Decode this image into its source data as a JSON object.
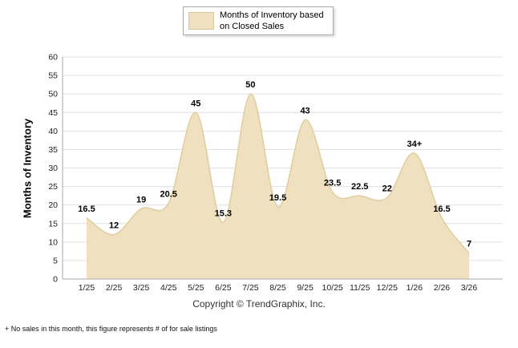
{
  "legend": {
    "label_line1": "Months of Inventory based",
    "label_line2": "on Closed Sales"
  },
  "ylabel": "Months of Inventory",
  "copyright": "Copyright © TrendGraphix, Inc.",
  "footnote": "+ No sales in this month, this figure represents # of for sale listings",
  "colors": {
    "area_fill": "#EFE1C0",
    "area_stroke": "#E0CC9E",
    "grid": "#e0e0e0",
    "axis": "#aaaaaa",
    "tick_text": "#222222",
    "label_text": "#000000"
  },
  "chart_data": {
    "type": "area",
    "title": "Months of Inventory based on Closed Sales",
    "categories": [
      "1/25",
      "2/25",
      "3/25",
      "4/25",
      "5/25",
      "6/25",
      "7/25",
      "8/25",
      "9/25",
      "10/25",
      "11/25",
      "12/25",
      "1/26",
      "2/26",
      "3/26"
    ],
    "values": [
      16.5,
      12,
      19,
      20.5,
      45,
      15.3,
      50,
      19.5,
      43,
      23.5,
      22.5,
      22,
      34,
      16.5,
      7
    ],
    "point_labels": [
      "16.5",
      "12",
      "19",
      "20.5",
      "45",
      "15.3",
      "50",
      "19.5",
      "43",
      "23.5",
      "22.5",
      "22",
      "34+",
      "16.5",
      "7"
    ],
    "ylabel": "Months of Inventory",
    "xlabel": "",
    "ylim": [
      0,
      60
    ],
    "ytick_step": 5,
    "grid": true,
    "legend_position": "top"
  }
}
